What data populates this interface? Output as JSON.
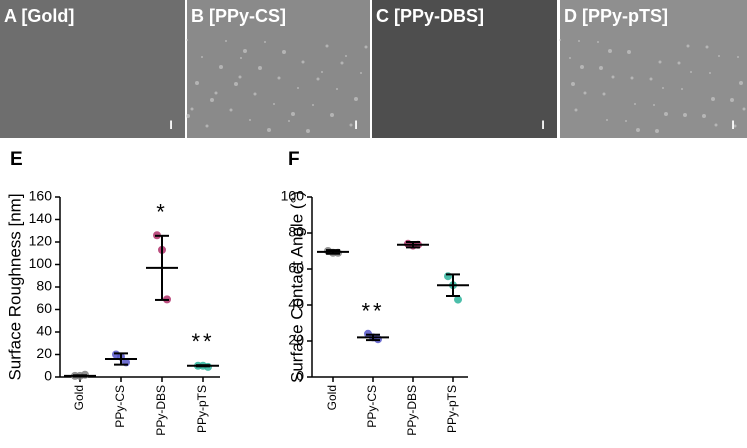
{
  "images": [
    {
      "label": "A [Gold]",
      "shade": "#6e6e6e"
    },
    {
      "label": "B [PPy-CS]",
      "shade": "#8a8a8a"
    },
    {
      "label": "C [PPy-DBS]",
      "shade": "#4e4e4e"
    },
    {
      "label": "D [PPy-pTS]",
      "shade": "#8f8f8f"
    }
  ],
  "chart_data": [
    {
      "type": "dot",
      "panel_label": "E",
      "ylabel": "Surface Roughness [nm]",
      "categories": [
        "Gold",
        "PPy-CS",
        "PPy-DBS",
        "PPy-pTS"
      ],
      "points": [
        [
          1,
          1,
          2
        ],
        [
          20,
          18,
          13
        ],
        [
          126,
          113,
          69
        ],
        [
          10,
          10,
          9
        ]
      ],
      "means": [
        1,
        16,
        97,
        10
      ],
      "errors": [
        0.5,
        5,
        28.5,
        0.5
      ],
      "colors": [
        "#808080",
        "#5555c8",
        "#b0306a",
        "#2db39b"
      ],
      "annotations": [
        null,
        null,
        "*",
        "**"
      ],
      "ylim": [
        0,
        160
      ],
      "yticks": [
        0,
        20,
        40,
        60,
        80,
        100,
        120,
        140,
        160
      ]
    },
    {
      "type": "dot",
      "panel_label": "F",
      "ylabel": "Surface Contact Angle (°)",
      "categories": [
        "Gold",
        "PPy-CS",
        "PPy-DBS",
        "PPy-pTS"
      ],
      "points": [
        [
          70,
          69,
          69
        ],
        [
          24,
          22,
          21
        ],
        [
          74,
          73,
          73.5
        ],
        [
          56,
          51,
          43
        ]
      ],
      "means": [
        69.5,
        22,
        73.5,
        51
      ],
      "errors": [
        1,
        1.5,
        1.5,
        6
      ],
      "colors": [
        "#808080",
        "#5555c8",
        "#b0306a",
        "#2db39b"
      ],
      "annotations": [
        null,
        "**",
        null,
        null
      ],
      "ylim": [
        0,
        100
      ],
      "yticks": [
        0,
        20,
        40,
        60,
        80,
        100
      ]
    }
  ]
}
